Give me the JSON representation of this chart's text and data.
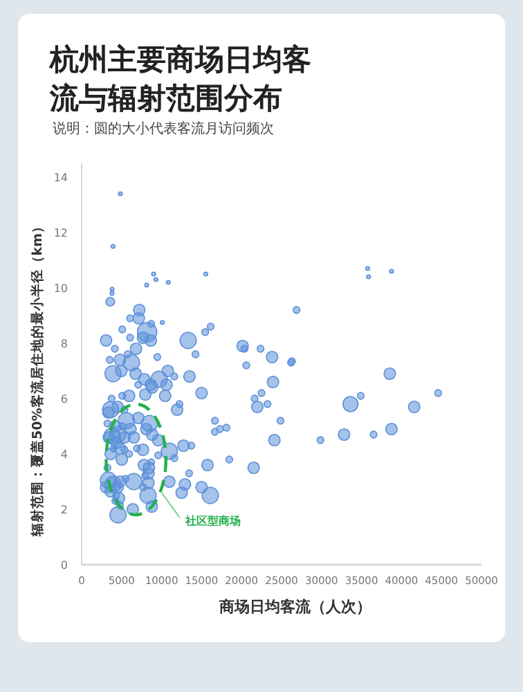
{
  "chart_data": {
    "type": "bubble",
    "title": "杭州主要商场日均客流与辐射范围分布",
    "subtitle": "说明：圆的大小代表客流月访问频次",
    "xlabel": "商场日均客流（人次）",
    "ylabel": "辐射范围：覆盖50%客流居住地的最小半径（km）",
    "annotations": [
      "社区型商场"
    ],
    "xlim": [
      0,
      50000
    ],
    "ylim": [
      0,
      14.5
    ],
    "xticks": [
      0,
      5000,
      10000,
      15000,
      20000,
      25000,
      30000,
      35000,
      40000,
      45000,
      50000
    ],
    "yticks": [
      0,
      2,
      4,
      6,
      8,
      10,
      12,
      14
    ],
    "grid": false,
    "series": [
      {
        "color": "#5b8fd9",
        "x": [
          4840,
          3930,
          9000,
          9290,
          8130,
          10840,
          15520,
          3810,
          3800,
          3580,
          7210,
          6060,
          7150,
          8700,
          10090,
          5080,
          8190,
          7670,
          8650,
          6060,
          3060,
          13320,
          16140,
          15450,
          4150,
          6800,
          9460,
          14240,
          20130,
          20360,
          22370,
          23820,
          20590,
          23930,
          3510,
          4790,
          6230,
          5760,
          6750,
          3930,
          4960,
          9690,
          10780,
          11590,
          13490,
          7840,
          8650,
          35760,
          35870,
          38750,
          26870,
          26300,
          26180,
          38530,
          21630,
          22490,
          21970,
          23240,
          24860,
          24100,
          33620,
          34900,
          29870,
          32820,
          36510,
          38750,
          41580,
          44580,
          21510,
          15000,
          16670,
          16660,
          17300,
          18110,
          18460,
          15740,
          16090,
          15000,
          13720,
          12740,
          12920,
          12510,
          13440,
          11940,
          12230,
          10610,
          10440,
          10960,
          11590,
          10960,
          8770,
          6400,
          4550,
          4670,
          8360,
          7670,
          8300,
          6520,
          8360,
          7790,
          8420,
          8700,
          9570,
          9570,
          8820,
          8080,
          8480,
          7090,
          5590,
          6110,
          6520,
          6920,
          7670,
          5940,
          5020,
          3630,
          3400,
          3810,
          4500,
          5360,
          4380,
          4790,
          3980,
          5360,
          3230,
          4210,
          5080,
          3630,
          3350,
          4500,
          5360,
          5940,
          5080,
          3750,
          7960,
          8820,
          7090,
          3350,
          3930,
          3060,
          4500,
          3630,
          4330,
          4790,
          5480,
          3230,
          4210,
          4790,
          7960
        ],
        "values": [
          13.4,
          11.5,
          10.5,
          10.3,
          10.1,
          10.2,
          10.5,
          9.95,
          9.8,
          9.5,
          9.2,
          8.9,
          8.9,
          8.7,
          8.75,
          8.5,
          8.4,
          8.2,
          8.1,
          8.2,
          8.1,
          8.1,
          8.6,
          8.4,
          7.8,
          7.8,
          7.5,
          7.6,
          7.9,
          7.8,
          7.8,
          7.5,
          7.2,
          6.6,
          7.4,
          7.4,
          7.3,
          7.6,
          6.9,
          6.9,
          7.0,
          6.7,
          7.0,
          6.8,
          6.8,
          6.7,
          6.5,
          10.7,
          10.4,
          10.6,
          9.2,
          7.35,
          7.3,
          6.9,
          6.0,
          6.2,
          5.7,
          5.8,
          5.2,
          4.5,
          5.8,
          6.1,
          4.5,
          4.7,
          4.7,
          4.9,
          5.7,
          6.2,
          3.5,
          6.2,
          5.2,
          4.8,
          4.9,
          4.95,
          3.8,
          3.6,
          2.5,
          2.8,
          4.3,
          4.3,
          2.9,
          2.6,
          3.3,
          5.6,
          5.8,
          6.5,
          6.1,
          4.1,
          3.85,
          3.0,
          2.1,
          2.0,
          1.8,
          2.4,
          2.95,
          2.8,
          2.5,
          3.0,
          3.3,
          3.6,
          3.5,
          3.7,
          3.95,
          4.5,
          4.7,
          4.9,
          5.1,
          5.3,
          5.2,
          4.9,
          4.6,
          4.2,
          4.15,
          4.0,
          3.8,
          4.0,
          4.6,
          4.65,
          4.7,
          4.6,
          4.4,
          4.2,
          4.2,
          4.15,
          5.1,
          5.0,
          5.0,
          5.6,
          5.5,
          5.7,
          5.6,
          6.1,
          6.1,
          6.0,
          6.15,
          6.4,
          6.5,
          3.05,
          2.9,
          2.8,
          2.8,
          2.65,
          2.5,
          3.0,
          3.1,
          3.5,
          2.3,
          2.15,
          3.2
        ],
        "sizes": [
          0.04,
          0.04,
          0.04,
          0.04,
          0.04,
          0.04,
          0.04,
          0.04,
          0.04,
          0.2,
          0.35,
          0.12,
          0.35,
          0.12,
          0.04,
          0.12,
          1,
          0.35,
          0.35,
          0.12,
          0.35,
          0.7,
          0.12,
          0.12,
          0.12,
          0.35,
          0.12,
          0.12,
          0.35,
          0.12,
          0.12,
          0.35,
          0.12,
          0.35,
          0.12,
          0.35,
          0.7,
          0.12,
          0.35,
          0.7,
          0.35,
          0.7,
          0.35,
          0.12,
          0.35,
          0.35,
          0.35,
          0.04,
          0.04,
          0.04,
          0.12,
          0.12,
          0.12,
          0.35,
          0.12,
          0.12,
          0.35,
          0.12,
          0.12,
          0.35,
          0.6,
          0.12,
          0.12,
          0.35,
          0.12,
          0.35,
          0.35,
          0.12,
          0.35,
          0.35,
          0.12,
          0.12,
          0.12,
          0.12,
          0.12,
          0.35,
          0.7,
          0.35,
          0.12,
          0.35,
          0.35,
          0.35,
          0.12,
          0.35,
          0.12,
          0.35,
          0.35,
          0.7,
          0.12,
          0.35,
          0.35,
          0.35,
          0.7,
          0.35,
          0.35,
          0.12,
          0.7,
          0.7,
          0.35,
          0.35,
          0.35,
          0.12,
          0.12,
          0.35,
          0.35,
          0.35,
          0.7,
          0.35,
          0.7,
          0.35,
          0.35,
          0.12,
          0.35,
          0.12,
          0.35,
          0.35,
          0.35,
          0.7,
          0.7,
          0.35,
          0.35,
          0.35,
          0.12,
          0.12,
          0.12,
          0.35,
          0.12,
          0.7,
          0.35,
          0.35,
          0.12,
          0.35,
          0.12,
          0.12,
          0.35,
          0.35,
          0.12,
          0.7,
          0.7,
          0.35,
          0.35,
          0.35,
          0.12,
          0.35,
          0.12,
          0.12,
          0.12,
          0.12,
          0.12
        ]
      }
    ]
  }
}
